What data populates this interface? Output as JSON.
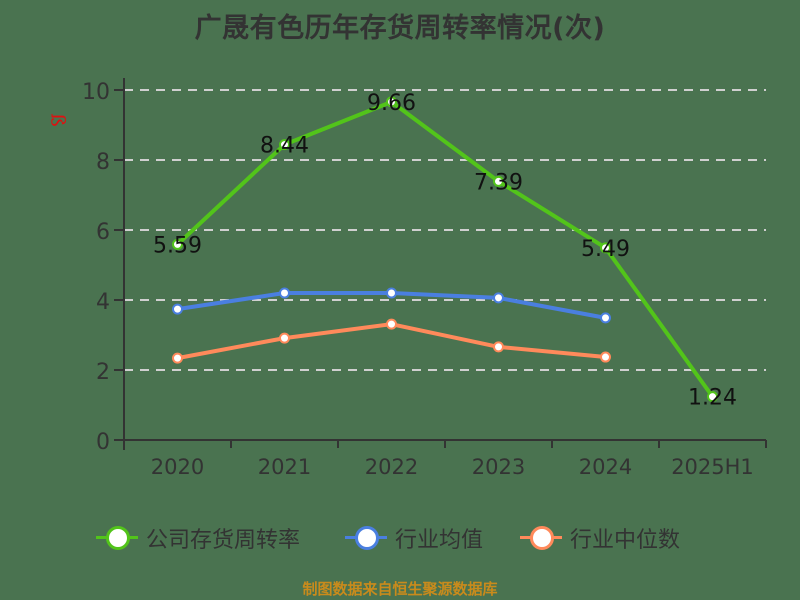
{
  "title": "广晟有色历年存货周转率情况(次)",
  "source_note": "制图数据来自恒生聚源数据库",
  "watermark_glyph": "ß",
  "legend": [
    {
      "label": "公司存货周转率",
      "color": "#52c41a"
    },
    {
      "label": "行业均值",
      "color": "#4a7fe0"
    },
    {
      "label": "行业中位数",
      "color": "#ff8a5b"
    }
  ],
  "chart_data": {
    "type": "line",
    "title": "广晟有色历年存货周转率情况(次)",
    "xlabel": "",
    "ylabel": "",
    "categories": [
      "2020",
      "2021",
      "2022",
      "2023",
      "2024",
      "2025H1"
    ],
    "ylim": [
      0,
      10
    ],
    "yticks": [
      0,
      2,
      4,
      6,
      8,
      10
    ],
    "grid": "horizontal dashed",
    "legend_position": "bottom",
    "series": [
      {
        "name": "公司存货周转率",
        "color": "#52c41a",
        "values": [
          5.59,
          8.44,
          9.66,
          7.39,
          5.49,
          1.24
        ],
        "data_labels": true
      },
      {
        "name": "行业均值",
        "color": "#4a7fe0",
        "values": [
          3.74,
          4.2,
          4.2,
          4.06,
          3.49,
          null
        ],
        "data_labels": false
      },
      {
        "name": "行业中位数",
        "color": "#ff8a5b",
        "values": [
          2.34,
          2.91,
          3.31,
          2.66,
          2.37,
          null
        ],
        "data_labels": false
      }
    ]
  }
}
